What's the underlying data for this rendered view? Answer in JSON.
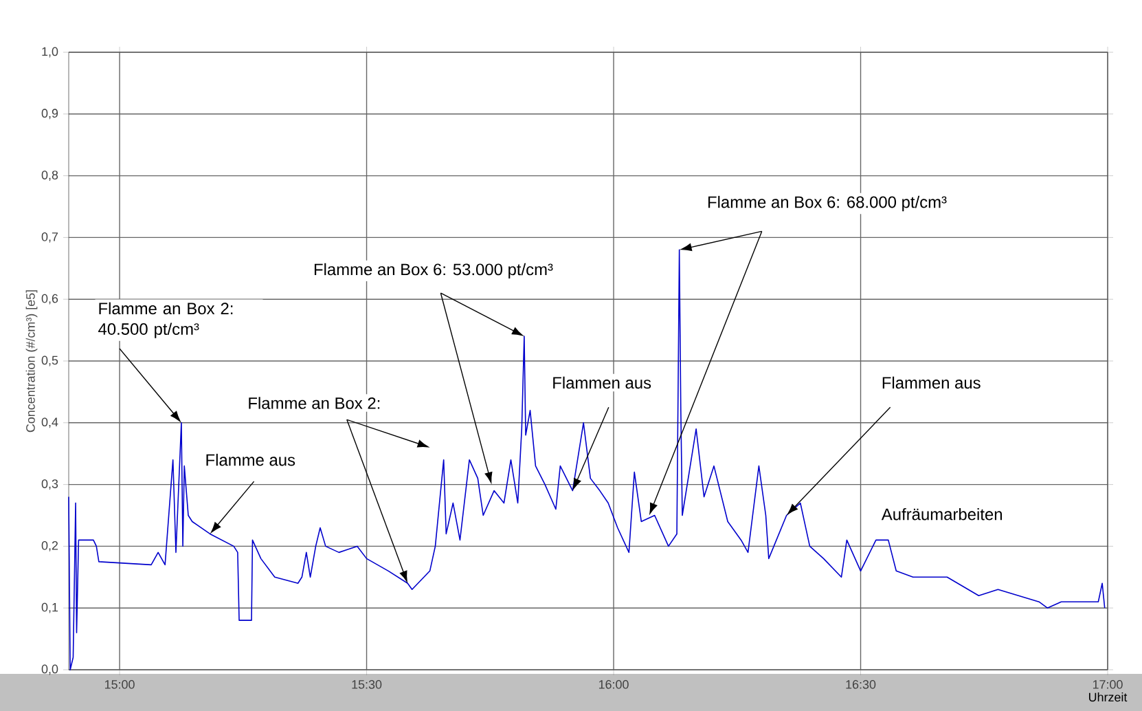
{
  "chart_data": {
    "type": "line",
    "xlabel": "Uhrzeit",
    "ylabel": "Concentration (#/cm³) [e5]",
    "xlim": [
      14.897,
      17.0
    ],
    "xticks": [
      {
        "value": 15.0,
        "label": "15:00"
      },
      {
        "value": 15.5,
        "label": "15:30"
      },
      {
        "value": 16.0,
        "label": "16:00"
      },
      {
        "value": 16.5,
        "label": "16:30"
      },
      {
        "value": 17.0,
        "label": "17:00"
      }
    ],
    "ylim": [
      0,
      1.0
    ],
    "yticks": [
      {
        "value": 0,
        "label": "0,0"
      },
      {
        "value": 0.1,
        "label": "0,1"
      },
      {
        "value": 0.2,
        "label": "0,2"
      },
      {
        "value": 0.3,
        "label": "0,3"
      },
      {
        "value": 0.4,
        "label": "0,4"
      },
      {
        "value": 0.5,
        "label": "0,5"
      },
      {
        "value": 0.6,
        "label": "0,6"
      },
      {
        "value": 0.7,
        "label": "0,7"
      },
      {
        "value": 0.8,
        "label": "0,8"
      },
      {
        "value": 0.9,
        "label": "0,9"
      },
      {
        "value": 1.0,
        "label": "1,0"
      }
    ],
    "grid": true,
    "color": "#0000cc",
    "x": [
      14.897,
      14.9,
      14.906,
      14.911,
      14.913,
      14.917,
      14.947,
      14.953,
      14.958,
      15.064,
      15.078,
      15.092,
      15.108,
      15.114,
      15.125,
      15.128,
      15.131,
      15.139,
      15.147,
      15.183,
      15.231,
      15.239,
      15.242,
      15.267,
      15.269,
      15.286,
      15.314,
      15.361,
      15.369,
      15.378,
      15.386,
      15.397,
      15.406,
      15.417,
      15.444,
      15.481,
      15.5,
      15.544,
      15.583,
      15.592,
      15.628,
      15.639,
      15.656,
      15.661,
      15.675,
      15.689,
      15.708,
      15.725,
      15.736,
      15.758,
      15.778,
      15.792,
      15.806,
      15.814,
      15.819,
      15.822,
      15.831,
      15.842,
      15.861,
      15.883,
      15.892,
      15.917,
      15.939,
      15.953,
      15.972,
      15.989,
      16.008,
      16.031,
      16.042,
      16.056,
      16.083,
      16.111,
      16.128,
      16.133,
      16.136,
      16.139,
      16.167,
      16.183,
      16.203,
      16.231,
      16.258,
      16.272,
      16.294,
      16.308,
      16.314,
      16.35,
      16.378,
      16.397,
      16.425,
      16.461,
      16.472,
      16.5,
      16.531,
      16.556,
      16.572,
      16.606,
      16.675,
      16.739,
      16.778,
      16.861,
      16.878,
      16.906,
      16.981,
      16.989,
      16.994
    ],
    "values": [
      0.28,
      0.0,
      0.02,
      0.27,
      0.06,
      0.21,
      0.21,
      0.2,
      0.175,
      0.17,
      0.19,
      0.17,
      0.34,
      0.19,
      0.4,
      0.2,
      0.33,
      0.25,
      0.24,
      0.22,
      0.2,
      0.19,
      0.08,
      0.08,
      0.21,
      0.18,
      0.15,
      0.14,
      0.15,
      0.19,
      0.15,
      0.2,
      0.23,
      0.2,
      0.19,
      0.2,
      0.18,
      0.16,
      0.14,
      0.13,
      0.16,
      0.2,
      0.34,
      0.22,
      0.27,
      0.21,
      0.34,
      0.31,
      0.25,
      0.29,
      0.27,
      0.34,
      0.27,
      0.39,
      0.54,
      0.38,
      0.42,
      0.33,
      0.3,
      0.26,
      0.33,
      0.29,
      0.4,
      0.31,
      0.29,
      0.27,
      0.23,
      0.19,
      0.32,
      0.24,
      0.25,
      0.2,
      0.22,
      0.68,
      0.42,
      0.25,
      0.39,
      0.28,
      0.33,
      0.24,
      0.21,
      0.19,
      0.33,
      0.25,
      0.18,
      0.25,
      0.27,
      0.2,
      0.18,
      0.15,
      0.21,
      0.16,
      0.21,
      0.21,
      0.16,
      0.15,
      0.15,
      0.12,
      0.13,
      0.11,
      0.1,
      0.11,
      0.11,
      0.14,
      0.1
    ],
    "annotations": [
      {
        "text": "Flamme an Box 2: 40.500 pt/cm³",
        "x": 15.125,
        "y": 0.4
      },
      {
        "text": "Flamme aus",
        "x": 15.183,
        "y": 0.22
      },
      {
        "text": "Flamme an Box 2:",
        "x": 15.583,
        "y": 0.14
      },
      {
        "text": "Flamme an Box 6: 53.000 pt/cm³",
        "x": 15.819,
        "y": 0.54
      },
      {
        "text": "Flammen aus",
        "x": 15.917,
        "y": 0.29
      },
      {
        "text": "Flamme an Box 6: 68.000 pt/cm³",
        "x": 16.133,
        "y": 0.68
      },
      {
        "text": "Flammen aus",
        "x": 16.35,
        "y": 0.25
      },
      "Aufräumarbeiten"
    ]
  }
}
